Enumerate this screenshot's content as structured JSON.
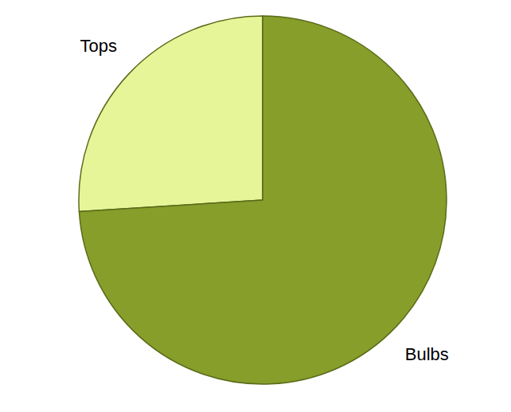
{
  "chart_data": {
    "type": "pie",
    "categories": [
      "Tops",
      "Bulbs"
    ],
    "values": [
      26,
      74
    ],
    "colors": [
      "#e6f598",
      "#879e2a"
    ]
  }
}
